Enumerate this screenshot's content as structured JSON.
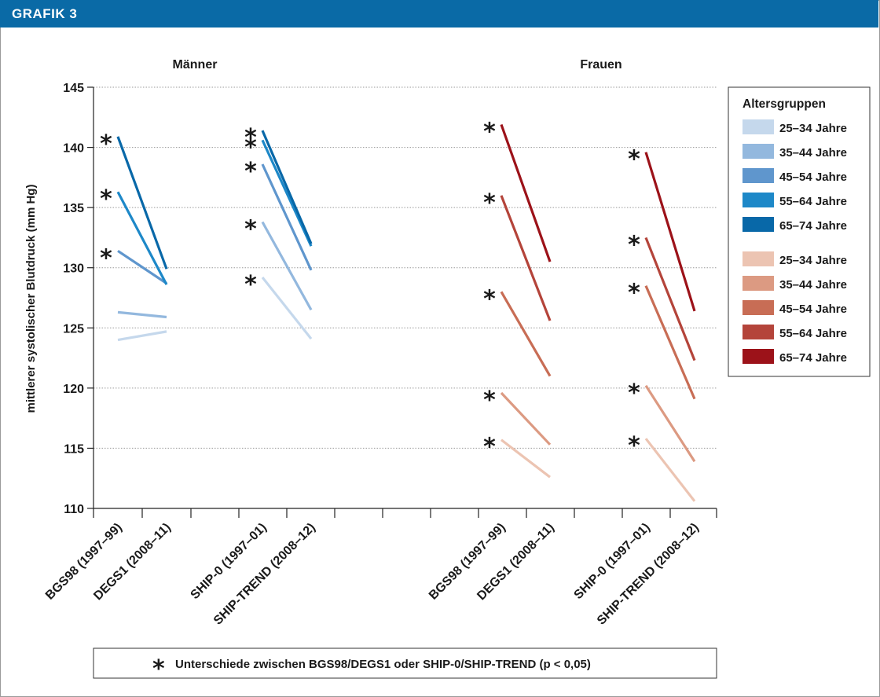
{
  "header": {
    "label": "GRAFIK 3"
  },
  "chart_data": {
    "type": "line",
    "ylabel": "mittlerer systolischer Blutdruck (mm Hg)",
    "ylim": [
      110,
      145
    ],
    "yticks": [
      110,
      115,
      120,
      125,
      130,
      135,
      140,
      145
    ],
    "grid": true,
    "legend_position": "right",
    "categories": [
      "BGS98 (1997–99)",
      "DEGS1 (2008–11)",
      "SHIP-0 (1997–01)",
      "SHIP-TREND (2008–12)",
      "BGS98 (1997–99)",
      "DEGS1 (2008–11)",
      "SHIP-0 (1997–01)",
      "SHIP-TREND (2008–12)"
    ],
    "panels": [
      {
        "title": "Männer",
        "category_indices": [
          0,
          1,
          2,
          3
        ]
      },
      {
        "title": "Frauen",
        "category_indices": [
          4,
          5,
          6,
          7
        ]
      }
    ],
    "legend": {
      "title": "Altersgruppen",
      "entries": [
        {
          "label": "25–34 Jahre",
          "color": "#c5d8ec"
        },
        {
          "label": "35–44 Jahre",
          "color": "#93b8de"
        },
        {
          "label": "45–54 Jahre",
          "color": "#5f96cd"
        },
        {
          "label": "55–64 Jahre",
          "color": "#1d88c8"
        },
        {
          "label": "65–74 Jahre",
          "color": "#0868a8"
        },
        {
          "label": "25–34 Jahre",
          "color": "#ecc4b2"
        },
        {
          "label": "35–44 Jahre",
          "color": "#dc9a82"
        },
        {
          "label": "45–54 Jahre",
          "color": "#c86d55"
        },
        {
          "label": "55–64 Jahre",
          "color": "#b4443a"
        },
        {
          "label": "65–74 Jahre",
          "color": "#9c1219"
        }
      ]
    },
    "series": [
      {
        "color": "#c5d8ec",
        "segments": [
          {
            "cats": [
              0,
              1
            ],
            "values": [
              124.0,
              124.7
            ],
            "sig": false
          },
          {
            "cats": [
              2,
              3
            ],
            "values": [
              129.2,
              124.1
            ],
            "sig": true
          }
        ]
      },
      {
        "color": "#93b8de",
        "segments": [
          {
            "cats": [
              0,
              1
            ],
            "values": [
              126.3,
              125.9
            ],
            "sig": false
          },
          {
            "cats": [
              2,
              3
            ],
            "values": [
              133.8,
              126.5
            ],
            "sig": true
          }
        ]
      },
      {
        "color": "#5f96cd",
        "segments": [
          {
            "cats": [
              0,
              1
            ],
            "values": [
              131.4,
              128.7
            ],
            "sig": true
          },
          {
            "cats": [
              2,
              3
            ],
            "values": [
              138.6,
              129.8
            ],
            "sig": true
          }
        ]
      },
      {
        "color": "#1d88c8",
        "segments": [
          {
            "cats": [
              0,
              1
            ],
            "values": [
              136.3,
              128.6
            ],
            "sig": true
          },
          {
            "cats": [
              2,
              3
            ],
            "values": [
              140.6,
              131.8
            ],
            "sig": true
          }
        ]
      },
      {
        "color": "#0868a8",
        "segments": [
          {
            "cats": [
              0,
              1
            ],
            "values": [
              140.9,
              129.9
            ],
            "sig": true
          },
          {
            "cats": [
              2,
              3
            ],
            "values": [
              141.4,
              132.0
            ],
            "sig": true
          }
        ]
      },
      {
        "color": "#ecc4b2",
        "segments": [
          {
            "cats": [
              4,
              5
            ],
            "values": [
              115.7,
              112.6
            ],
            "sig": true
          },
          {
            "cats": [
              6,
              7
            ],
            "values": [
              115.8,
              110.6
            ],
            "sig": true
          }
        ]
      },
      {
        "color": "#dc9a82",
        "segments": [
          {
            "cats": [
              4,
              5
            ],
            "values": [
              119.6,
              115.3
            ],
            "sig": true
          },
          {
            "cats": [
              6,
              7
            ],
            "values": [
              120.2,
              113.9
            ],
            "sig": true
          }
        ]
      },
      {
        "color": "#c86d55",
        "segments": [
          {
            "cats": [
              4,
              5
            ],
            "values": [
              128.0,
              121.0
            ],
            "sig": true
          },
          {
            "cats": [
              6,
              7
            ],
            "values": [
              128.5,
              119.1
            ],
            "sig": true
          }
        ]
      },
      {
        "color": "#b4443a",
        "segments": [
          {
            "cats": [
              4,
              5
            ],
            "values": [
              136.0,
              125.6
            ],
            "sig": true
          },
          {
            "cats": [
              6,
              7
            ],
            "values": [
              132.5,
              122.3
            ],
            "sig": true
          }
        ]
      },
      {
        "color": "#9c1219",
        "segments": [
          {
            "cats": [
              4,
              5
            ],
            "values": [
              141.9,
              130.5
            ],
            "sig": true
          },
          {
            "cats": [
              6,
              7
            ],
            "values": [
              139.6,
              126.4
            ],
            "sig": true
          }
        ]
      }
    ],
    "significance_marker": "*",
    "footnote": "Unterschiede zwischen BGS98/DEGS1 oder SHIP-0/SHIP-TREND (p < 0,05)"
  }
}
